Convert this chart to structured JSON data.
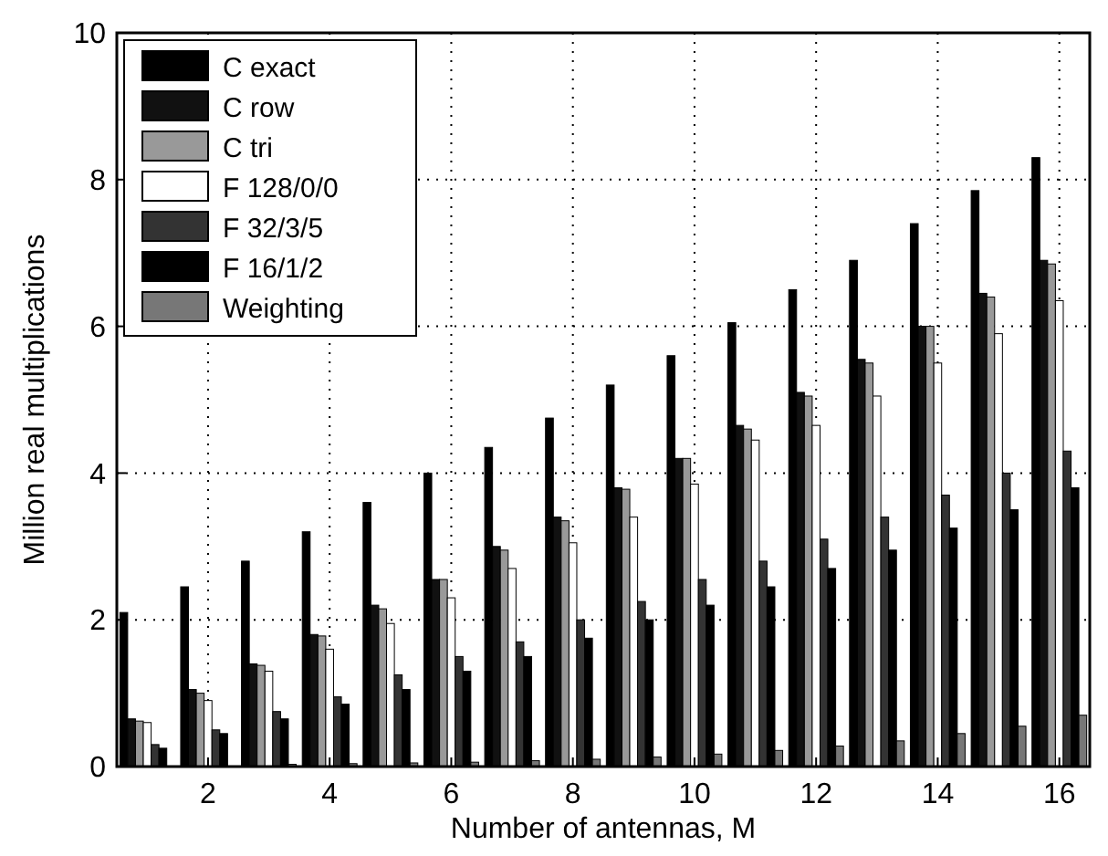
{
  "chart_data": {
    "type": "bar",
    "xlabel": "Number of antennas, M",
    "ylabel": "Million real multiplications",
    "x": [
      1,
      2,
      3,
      4,
      5,
      6,
      7,
      8,
      9,
      10,
      11,
      12,
      13,
      14,
      15,
      16
    ],
    "series": [
      {
        "name": "C exact",
        "color": "#000000",
        "values": [
          2.1,
          2.45,
          2.8,
          3.2,
          3.6,
          4.0,
          4.35,
          4.75,
          5.2,
          5.6,
          6.05,
          6.5,
          6.9,
          7.4,
          7.85,
          8.3
        ]
      },
      {
        "name": "C row",
        "color": "#111111",
        "values": [
          0.65,
          1.05,
          1.4,
          1.8,
          2.2,
          2.55,
          3.0,
          3.4,
          3.8,
          4.2,
          4.65,
          5.1,
          5.55,
          6.0,
          6.45,
          6.9
        ]
      },
      {
        "name": "C tri",
        "color": "#999999",
        "values": [
          0.62,
          1.0,
          1.38,
          1.78,
          2.15,
          2.55,
          2.95,
          3.35,
          3.78,
          4.2,
          4.6,
          5.05,
          5.5,
          6.0,
          6.4,
          6.85
        ]
      },
      {
        "name": "F 128/0/0",
        "color": "#ffffff",
        "values": [
          0.6,
          0.9,
          1.3,
          1.6,
          1.95,
          2.3,
          2.7,
          3.05,
          3.4,
          3.85,
          4.45,
          4.65,
          5.05,
          5.5,
          5.9,
          6.35
        ]
      },
      {
        "name": "F 32/3/5",
        "color": "#333333",
        "values": [
          0.3,
          0.5,
          0.75,
          0.95,
          1.25,
          1.5,
          1.7,
          2.0,
          2.25,
          2.55,
          2.8,
          3.1,
          3.4,
          3.7,
          4.0,
          4.3
        ]
      },
      {
        "name": "F 16/1/2",
        "color": "#000000",
        "values": [
          0.25,
          0.45,
          0.65,
          0.85,
          1.05,
          1.3,
          1.5,
          1.75,
          2.0,
          2.2,
          2.45,
          2.7,
          2.95,
          3.25,
          3.5,
          3.8
        ]
      },
      {
        "name": "Weighting",
        "color": "#777777",
        "values": [
          null,
          null,
          0.03,
          0.04,
          0.05,
          0.06,
          0.08,
          0.1,
          0.13,
          0.17,
          0.22,
          0.28,
          0.35,
          0.45,
          0.55,
          0.7
        ]
      }
    ],
    "xlim": [
      0.5,
      16.5
    ],
    "xticks": [
      2,
      4,
      6,
      8,
      10,
      12,
      14,
      16
    ],
    "ylim": [
      0,
      10
    ],
    "yticks": [
      0,
      2,
      4,
      6,
      8,
      10
    ],
    "grid": true,
    "legend": "top left"
  }
}
